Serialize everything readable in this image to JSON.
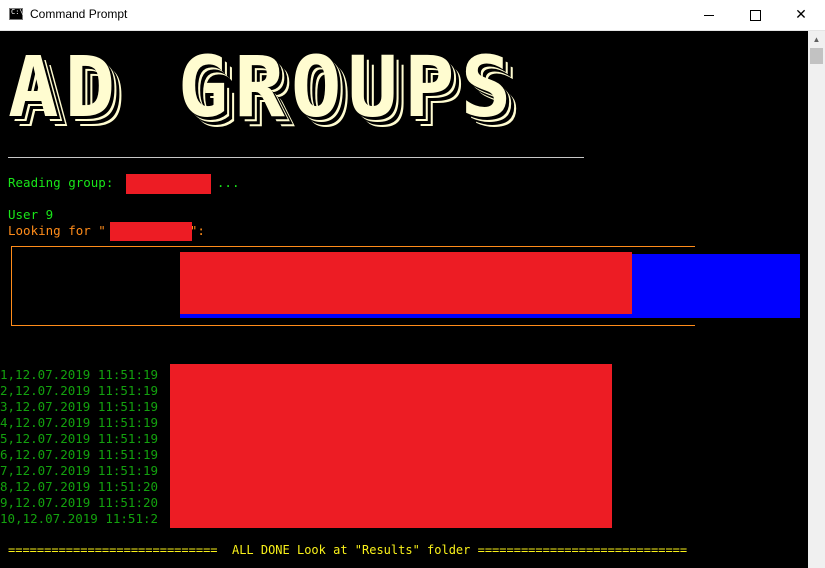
{
  "window": {
    "title": "Command Prompt",
    "minimize_symbol": "",
    "maximize_symbol": "",
    "close_symbol": "✕"
  },
  "console": {
    "banner": "AD GROUPS",
    "reading_group": "Reading group: ",
    "ellipsis": "...",
    "user_line": "User 9",
    "looking_for_prefix": "Looking for \"",
    "looking_for_suffix": "\":",
    "progress_caption": "••••••",
    "log_rows": [
      "1,12.07.2019 11:51:19",
      "2,12.07.2019 11:51:19",
      "3,12.07.2019 11:51:19",
      "4,12.07.2019 11:51:19",
      "5,12.07.2019 11:51:19",
      "6,12.07.2019 11:51:19",
      "7,12.07.2019 11:51:19",
      "8,12.07.2019 11:51:20",
      "9,12.07.2019 11:51:20",
      "10,12.07.2019 11:51:2"
    ],
    "done_line": "=============================  ALL DONE Look at \"Results\" folder ============================="
  },
  "colors": {
    "redaction": "#ed1c24",
    "progress_bar": "#0000ff",
    "banner": "#fffcd0"
  }
}
